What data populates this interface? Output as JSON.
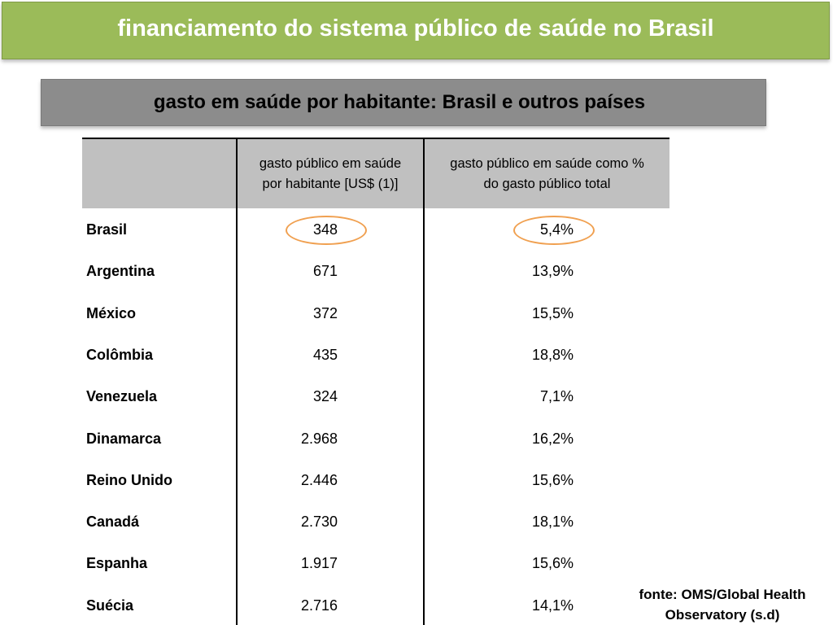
{
  "title": "financiamento do sistema público de saúde no Brasil",
  "subtitle": "gasto em saúde por habitante: Brasil e outros países",
  "table": {
    "header": {
      "col1_line1": "gasto público em saúde",
      "col1_line2": "por habitante [US$ (1)]",
      "col2_line1": "gasto público em saúde como %",
      "col2_line2": "do gasto público total"
    },
    "rows": [
      {
        "country": "Brasil",
        "per_capita": "348",
        "pct_total": "5,4%"
      },
      {
        "country": "Argentina",
        "per_capita": "671",
        "pct_total": "13,9%"
      },
      {
        "country": "México",
        "per_capita": "372",
        "pct_total": "15,5%"
      },
      {
        "country": "Colômbia",
        "per_capita": "435",
        "pct_total": "18,8%"
      },
      {
        "country": "Venezuela",
        "per_capita": "324",
        "pct_total": "7,1%"
      },
      {
        "country": "Dinamarca",
        "per_capita": "2.968",
        "pct_total": "16,2%"
      },
      {
        "country": "Reino Unido",
        "per_capita": "2.446",
        "pct_total": "15,6%"
      },
      {
        "country": "Canadá",
        "per_capita": "2.730",
        "pct_total": "18,1%"
      },
      {
        "country": "Espanha",
        "per_capita": "1.917",
        "pct_total": "15,6%"
      },
      {
        "country": "Suécia",
        "per_capita": "2.716",
        "pct_total": "14,1%"
      }
    ],
    "highlighted_row": "Brasil"
  },
  "source": {
    "line1": "fonte: OMS/Global Health",
    "line2": "Observatory (s.d)"
  },
  "colors": {
    "title_bar": "#9bbb59",
    "subtitle_bar": "#8c8c8c",
    "header_bg": "#c0c0c0",
    "highlight": "#f0a050"
  }
}
